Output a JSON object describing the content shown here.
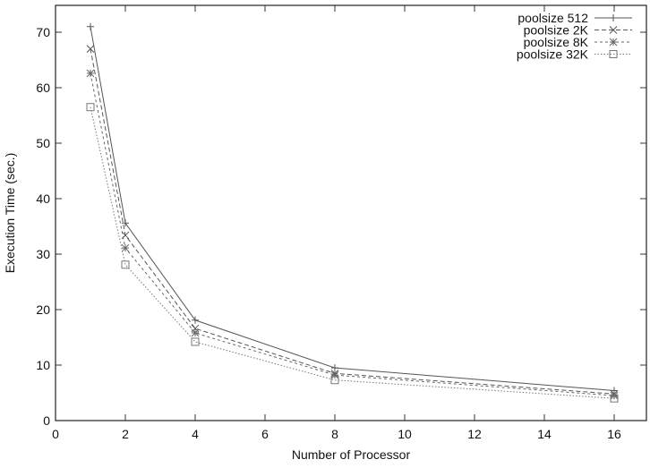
{
  "chart_data": {
    "type": "line",
    "title": "",
    "xlabel": "Number of Processor",
    "ylabel": "Execution Time (sec.)",
    "xlim": [
      0,
      16.9
    ],
    "ylim": [
      0,
      75
    ],
    "x_ticks": [
      0,
      2,
      4,
      6,
      8,
      10,
      12,
      14,
      16
    ],
    "y_ticks": [
      0,
      10,
      20,
      30,
      40,
      50,
      60,
      70
    ],
    "grid": false,
    "legend_position": "top-right",
    "x": [
      1,
      2,
      4,
      8,
      16
    ],
    "series": [
      {
        "name": "poolsize 512",
        "marker": "plus",
        "line": "solid",
        "values": [
          71.0,
          35.6,
          18.1,
          9.5,
          5.4
        ]
      },
      {
        "name": "poolsize 2K",
        "marker": "cross",
        "line": "dashed",
        "values": [
          67.0,
          33.4,
          16.6,
          8.5,
          4.8
        ]
      },
      {
        "name": "poolsize 8K",
        "marker": "star",
        "line": "dashdot",
        "values": [
          62.6,
          31.1,
          15.8,
          8.2,
          4.5
        ]
      },
      {
        "name": "poolsize 32K",
        "marker": "square",
        "line": "dotted",
        "values": [
          56.5,
          28.1,
          14.2,
          7.3,
          4.0
        ]
      }
    ]
  },
  "colors": {
    "axis": "#333333",
    "series": [
      "#555555",
      "#555555",
      "#666666",
      "#777777"
    ]
  }
}
